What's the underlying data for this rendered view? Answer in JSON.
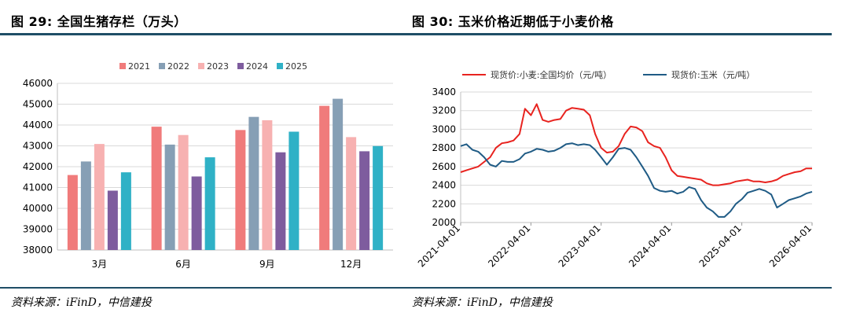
{
  "left": {
    "title": "图 29:  全国生猪存栏（万头）",
    "source": "资料来源：iFinD，中信建投",
    "chart_data": {
      "type": "bar",
      "title": "全国生猪存栏（万头）",
      "categories": [
        "3月",
        "6月",
        "9月",
        "12月"
      ],
      "series": [
        {
          "name": "2021",
          "color": "#f07b7b",
          "values": [
            41600,
            43920,
            43760,
            44920
          ]
        },
        {
          "name": "2022",
          "color": "#869fb5",
          "values": [
            42250,
            43060,
            44390,
            45260
          ]
        },
        {
          "name": "2023",
          "color": "#f7b1b1",
          "values": [
            43090,
            43520,
            44230,
            43420
          ]
        },
        {
          "name": "2024",
          "color": "#7e5c9e",
          "values": [
            40850,
            41530,
            42690,
            42740
          ]
        },
        {
          "name": "2025",
          "color": "#2fb1c6",
          "values": [
            41730,
            42450,
            43680,
            42990
          ]
        }
      ],
      "ylim": [
        38000,
        46000
      ],
      "yticks": [
        38000,
        39000,
        40000,
        41000,
        42000,
        43000,
        44000,
        45000,
        46000
      ],
      "grid": true,
      "legend": "top"
    }
  },
  "right": {
    "title": "图 30:  玉米价格近期低于小麦价格",
    "source": "资料来源：iFinD，中信建投",
    "chart_data": {
      "type": "line",
      "title": "玉米价格近期低于小麦价格",
      "ylim": [
        2000,
        3400
      ],
      "yticks": [
        2000,
        2200,
        2400,
        2600,
        2800,
        3000,
        3200,
        3400
      ],
      "xlim": [
        "2021-04-01",
        "2026-04-01"
      ],
      "xticks": [
        "2021-04-01",
        "2022-04-01",
        "2023-04-01",
        "2024-04-01",
        "2025-04-01",
        "2026-04-01"
      ],
      "grid": true,
      "legend": "top",
      "series": [
        {
          "name": "现货价:小麦:全国均价（元/吨）",
          "color": "#e8231f",
          "points": [
            [
              "2021-04-01",
              2540
            ],
            [
              "2021-05-01",
              2560
            ],
            [
              "2021-06-01",
              2580
            ],
            [
              "2021-07-01",
              2600
            ],
            [
              "2021-08-01",
              2650
            ],
            [
              "2021-09-01",
              2700
            ],
            [
              "2021-10-01",
              2800
            ],
            [
              "2021-11-01",
              2850
            ],
            [
              "2021-12-01",
              2860
            ],
            [
              "2022-01-01",
              2880
            ],
            [
              "2022-02-01",
              2950
            ],
            [
              "2022-03-01",
              3220
            ],
            [
              "2022-04-01",
              3150
            ],
            [
              "2022-05-01",
              3270
            ],
            [
              "2022-06-01",
              3100
            ],
            [
              "2022-07-01",
              3080
            ],
            [
              "2022-08-01",
              3100
            ],
            [
              "2022-09-01",
              3110
            ],
            [
              "2022-10-01",
              3200
            ],
            [
              "2022-11-01",
              3230
            ],
            [
              "2022-12-01",
              3220
            ],
            [
              "2023-01-01",
              3210
            ],
            [
              "2023-02-01",
              3150
            ],
            [
              "2023-03-01",
              2950
            ],
            [
              "2023-04-01",
              2800
            ],
            [
              "2023-05-01",
              2750
            ],
            [
              "2023-06-01",
              2760
            ],
            [
              "2023-07-01",
              2820
            ],
            [
              "2023-08-01",
              2950
            ],
            [
              "2023-09-01",
              3030
            ],
            [
              "2023-10-01",
              3020
            ],
            [
              "2023-11-01",
              2980
            ],
            [
              "2023-12-01",
              2860
            ],
            [
              "2024-01-01",
              2820
            ],
            [
              "2024-02-01",
              2800
            ],
            [
              "2024-03-01",
              2700
            ],
            [
              "2024-04-01",
              2560
            ],
            [
              "2024-05-01",
              2500
            ],
            [
              "2024-06-01",
              2490
            ],
            [
              "2024-07-01",
              2480
            ],
            [
              "2024-08-01",
              2470
            ],
            [
              "2024-09-01",
              2460
            ],
            [
              "2024-10-01",
              2420
            ],
            [
              "2024-11-01",
              2400
            ],
            [
              "2024-12-01",
              2400
            ],
            [
              "2025-01-01",
              2410
            ],
            [
              "2025-02-01",
              2420
            ],
            [
              "2025-03-01",
              2440
            ],
            [
              "2025-04-01",
              2450
            ],
            [
              "2025-05-01",
              2460
            ],
            [
              "2025-06-01",
              2440
            ],
            [
              "2025-07-01",
              2440
            ],
            [
              "2025-08-01",
              2430
            ],
            [
              "2025-09-01",
              2440
            ],
            [
              "2025-10-01",
              2460
            ],
            [
              "2025-11-01",
              2500
            ],
            [
              "2025-12-01",
              2520
            ],
            [
              "2026-01-01",
              2540
            ],
            [
              "2026-02-01",
              2550
            ],
            [
              "2026-03-01",
              2580
            ],
            [
              "2026-04-01",
              2580
            ]
          ]
        },
        {
          "name": "现货价:玉米（元/吨）",
          "color": "#1f5b85",
          "points": [
            [
              "2021-04-01",
              2820
            ],
            [
              "2021-05-01",
              2840
            ],
            [
              "2021-06-01",
              2780
            ],
            [
              "2021-07-01",
              2760
            ],
            [
              "2021-08-01",
              2700
            ],
            [
              "2021-09-01",
              2620
            ],
            [
              "2021-10-01",
              2600
            ],
            [
              "2021-11-01",
              2660
            ],
            [
              "2021-12-01",
              2650
            ],
            [
              "2022-01-01",
              2650
            ],
            [
              "2022-02-01",
              2680
            ],
            [
              "2022-03-01",
              2740
            ],
            [
              "2022-04-01",
              2760
            ],
            [
              "2022-05-01",
              2790
            ],
            [
              "2022-06-01",
              2780
            ],
            [
              "2022-07-01",
              2760
            ],
            [
              "2022-08-01",
              2770
            ],
            [
              "2022-09-01",
              2800
            ],
            [
              "2022-10-01",
              2840
            ],
            [
              "2022-11-01",
              2850
            ],
            [
              "2022-12-01",
              2830
            ],
            [
              "2023-01-01",
              2840
            ],
            [
              "2023-02-01",
              2830
            ],
            [
              "2023-03-01",
              2780
            ],
            [
              "2023-04-01",
              2700
            ],
            [
              "2023-05-01",
              2620
            ],
            [
              "2023-06-01",
              2700
            ],
            [
              "2023-07-01",
              2790
            ],
            [
              "2023-08-01",
              2800
            ],
            [
              "2023-09-01",
              2780
            ],
            [
              "2023-10-01",
              2700
            ],
            [
              "2023-11-01",
              2600
            ],
            [
              "2023-12-01",
              2500
            ],
            [
              "2024-01-01",
              2370
            ],
            [
              "2024-02-01",
              2340
            ],
            [
              "2024-03-01",
              2330
            ],
            [
              "2024-04-01",
              2340
            ],
            [
              "2024-05-01",
              2310
            ],
            [
              "2024-06-01",
              2330
            ],
            [
              "2024-07-01",
              2380
            ],
            [
              "2024-08-01",
              2360
            ],
            [
              "2024-09-01",
              2240
            ],
            [
              "2024-10-01",
              2160
            ],
            [
              "2024-11-01",
              2120
            ],
            [
              "2024-12-01",
              2060
            ],
            [
              "2025-01-01",
              2060
            ],
            [
              "2025-02-01",
              2120
            ],
            [
              "2025-03-01",
              2200
            ],
            [
              "2025-04-01",
              2250
            ],
            [
              "2025-05-01",
              2320
            ],
            [
              "2025-06-01",
              2340
            ],
            [
              "2025-07-01",
              2360
            ],
            [
              "2025-08-01",
              2340
            ],
            [
              "2025-09-01",
              2300
            ],
            [
              "2025-10-01",
              2160
            ],
            [
              "2025-11-01",
              2200
            ],
            [
              "2025-12-01",
              2240
            ],
            [
              "2026-01-01",
              2260
            ],
            [
              "2026-02-01",
              2280
            ],
            [
              "2026-03-01",
              2310
            ],
            [
              "2026-04-01",
              2330
            ]
          ]
        }
      ]
    }
  }
}
